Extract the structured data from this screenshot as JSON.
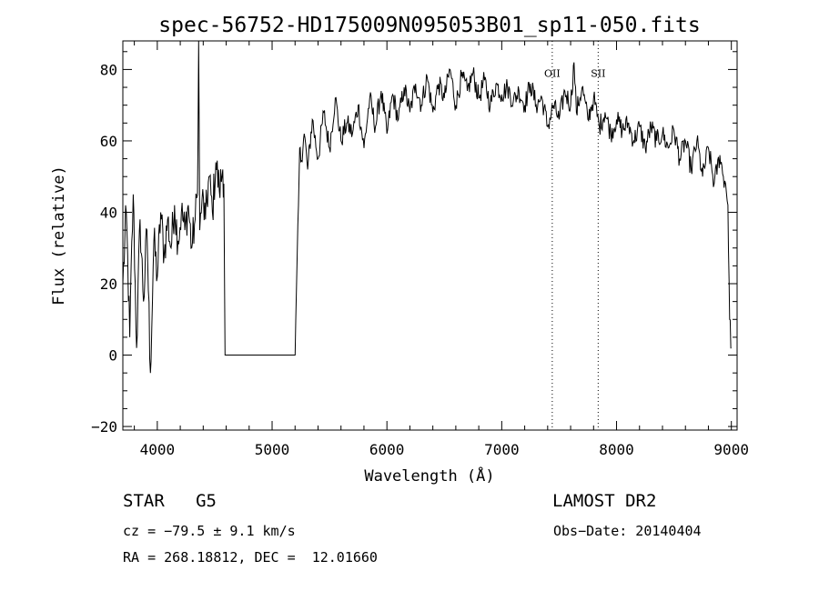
{
  "chart_data": {
    "type": "line",
    "title": "spec-56752-HD175009N095053B01_sp11-050.fits",
    "xlabel": "Wavelength (Å)",
    "ylabel": "Flux (relative)",
    "xlim": [
      3700,
      9050
    ],
    "ylim": [
      -21,
      88
    ],
    "xticks": [
      4000,
      5000,
      6000,
      7000,
      8000,
      9000
    ],
    "xtick_labels": [
      "4000",
      "5000",
      "6000",
      "7000",
      "8000",
      "9000"
    ],
    "yticks": [
      -20,
      0,
      20,
      40,
      60,
      80
    ],
    "ytick_labels": [
      "−20",
      "0",
      "20",
      "40",
      "60",
      "80"
    ],
    "grid": false,
    "line_color": "#000000",
    "series": [
      {
        "x": [
          3700,
          3730,
          3760,
          3790,
          3820,
          3850,
          3880,
          3910,
          3940,
          3970,
          4000,
          4030,
          4060,
          4090,
          4120,
          4150,
          4180,
          4210,
          4240,
          4270,
          4300,
          4330,
          4350,
          4360,
          4370,
          4390,
          4420,
          4450,
          4480,
          4510,
          4540,
          4570,
          4580,
          4590,
          4600,
          5200,
          5230,
          5240,
          5250,
          5280,
          5310,
          5350,
          5400,
          5450,
          5500,
          5550,
          5600,
          5650,
          5700,
          5750,
          5800,
          5850,
          5900,
          5950,
          6000,
          6050,
          6100,
          6150,
          6200,
          6250,
          6300,
          6350,
          6400,
          6450,
          6500,
          6550,
          6600,
          6650,
          6700,
          6750,
          6800,
          6850,
          6900,
          6950,
          7000,
          7050,
          7100,
          7150,
          7200,
          7250,
          7300,
          7350,
          7400,
          7450,
          7500,
          7550,
          7600,
          7630,
          7650,
          7700,
          7750,
          7800,
          7850,
          7900,
          7950,
          8000,
          8050,
          8100,
          8150,
          8200,
          8250,
          8300,
          8350,
          8400,
          8450,
          8500,
          8550,
          8600,
          8650,
          8700,
          8750,
          8800,
          8850,
          8900,
          8930,
          8950,
          8970,
          8985,
          9000
        ],
        "y": [
          20,
          40,
          5,
          45,
          2,
          38,
          15,
          35,
          -5,
          32,
          22,
          40,
          28,
          38,
          30,
          42,
          32,
          40,
          35,
          42,
          30,
          38,
          45,
          88,
          35,
          44,
          38,
          50,
          40,
          54,
          46,
          52,
          48,
          0,
          0,
          0,
          42,
          58,
          54,
          62,
          52,
          66,
          55,
          68,
          58,
          72,
          60,
          65,
          62,
          70,
          58,
          72,
          64,
          74,
          62,
          73,
          66,
          75,
          68,
          76,
          70,
          78,
          68,
          76,
          72,
          80,
          70,
          78,
          74,
          79,
          72,
          77,
          70,
          76,
          73,
          75,
          71,
          74,
          70,
          76,
          70,
          72,
          64,
          70,
          66,
          74,
          70,
          82,
          68,
          75,
          66,
          72,
          64,
          68,
          62,
          66,
          63,
          65,
          60,
          64,
          58,
          64,
          60,
          62,
          58,
          63,
          55,
          60,
          52,
          60,
          50,
          58,
          48,
          56,
          50,
          48,
          42,
          10,
          2
        ]
      }
    ],
    "annotations": [
      {
        "label": "OII",
        "x": 7440
      },
      {
        "label": "SII",
        "x": 7840
      }
    ],
    "info": {
      "class": "STAR",
      "subclass": "G5",
      "survey": "LAMOST DR2",
      "cz": "cz = −79.5 ± 9.1 km/s",
      "obs_date": "Obs−Date: 20140404",
      "radec": "RA = 268.18812, DEC =  12.01660"
    }
  }
}
